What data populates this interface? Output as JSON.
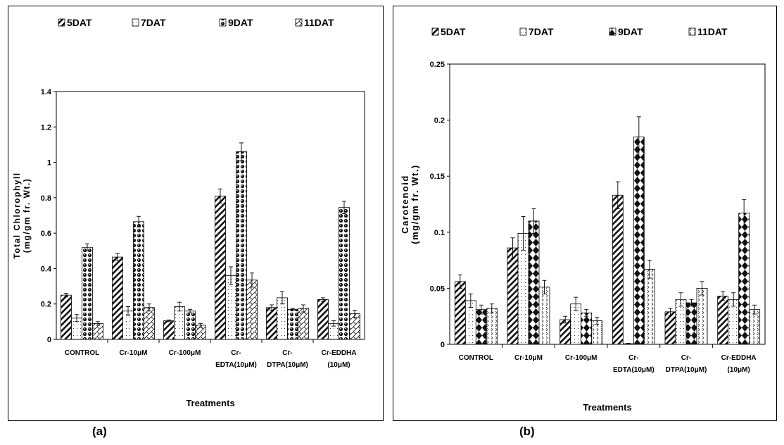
{
  "panel_labels": [
    "(a)",
    "(b)"
  ],
  "chart_data": [
    {
      "type": "bar",
      "xlabel": "Treatments",
      "ylabel": [
        "Total Chlorophyll",
        "(mg/gm fr. Wt.)"
      ],
      "ylim": [
        0,
        1.4
      ],
      "yticks": [
        "0",
        "0.2",
        "0.4",
        "0.6",
        "0.8",
        "1",
        "1.2",
        "1.4"
      ],
      "legend_position": "top",
      "categories": [
        [
          "CONTROL"
        ],
        [
          "Cr-10μM"
        ],
        [
          "Cr-100μM"
        ],
        [
          "Cr-",
          "EDTA(10μM)"
        ],
        [
          "Cr-",
          "DTPA(10μM)"
        ],
        [
          "Cr-EDDHA",
          "(10μM)"
        ]
      ],
      "series": [
        {
          "name": "5DAT",
          "values": [
            0.25,
            0.465,
            0.105,
            0.81,
            0.18,
            0.225
          ],
          "errors": [
            0.01,
            0.02,
            0.005,
            0.04,
            0.015,
            0.01
          ]
        },
        {
          "name": "7DAT",
          "values": [
            0.12,
            0.16,
            0.185,
            0.36,
            0.235,
            0.09
          ],
          "errors": [
            0.02,
            0.025,
            0.025,
            0.05,
            0.035,
            0.015
          ]
        },
        {
          "name": "9DAT",
          "values": [
            0.52,
            0.665,
            0.16,
            1.06,
            0.17,
            0.745
          ],
          "errors": [
            0.02,
            0.03,
            0.01,
            0.05,
            0.005,
            0.035
          ]
        },
        {
          "name": "11DAT",
          "values": [
            0.09,
            0.18,
            0.08,
            0.335,
            0.175,
            0.145
          ],
          "errors": [
            0.01,
            0.02,
            0.01,
            0.04,
            0.02,
            0.02
          ]
        }
      ]
    },
    {
      "type": "bar",
      "xlabel": "Treatments",
      "ylabel": [
        "Carotenoid",
        "(mg/gm fr. Wt.)"
      ],
      "ylim": [
        0,
        0.25
      ],
      "yticks": [
        "0",
        "0.05",
        "0.1",
        "0.15",
        "0.2",
        "0.25"
      ],
      "legend_position": "top",
      "categories": [
        [
          "CONTROL"
        ],
        [
          "Cr-10μM"
        ],
        [
          "Cr-100μM"
        ],
        [
          "Cr-",
          "EDTA(10μM)"
        ],
        [
          "Cr-",
          "DTPA(10μM)"
        ],
        [
          "Cr-EDDHA",
          "(10μM)"
        ]
      ],
      "series": [
        {
          "name": "5DAT",
          "values": [
            0.056,
            0.086,
            0.022,
            0.133,
            0.029,
            0.043
          ],
          "errors": [
            0.006,
            0.009,
            0.003,
            0.012,
            0.003,
            0.004
          ]
        },
        {
          "name": "7DAT",
          "values": [
            0.039,
            0.099,
            0.036,
            0.0005,
            0.04,
            0.04
          ],
          "errors": [
            0.006,
            0.015,
            0.006,
            0.0005,
            0.006,
            0.006
          ]
        },
        {
          "name": "9DAT",
          "values": [
            0.031,
            0.11,
            0.028,
            0.185,
            0.037,
            0.117
          ],
          "errors": [
            0.004,
            0.011,
            0.003,
            0.018,
            0.003,
            0.012
          ]
        },
        {
          "name": "11DAT",
          "values": [
            0.032,
            0.051,
            0.021,
            0.067,
            0.05,
            0.031
          ],
          "errors": [
            0.004,
            0.006,
            0.003,
            0.008,
            0.006,
            0.004
          ]
        }
      ]
    }
  ]
}
